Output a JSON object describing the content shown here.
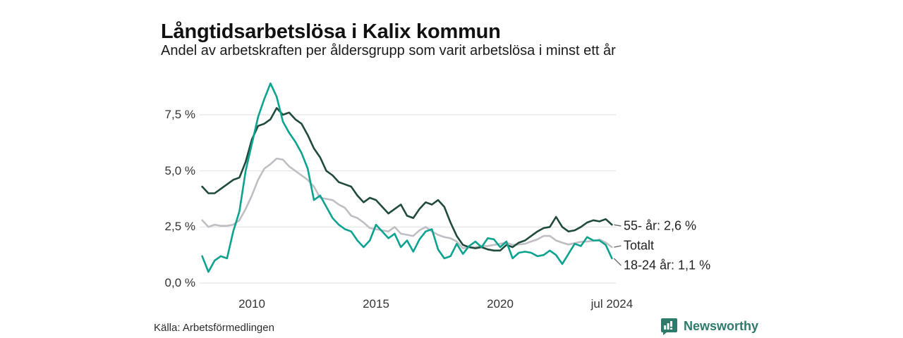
{
  "header": {
    "title": "Långtidsarbetslösa i Kalix kommun",
    "subtitle": "Andel av arbetskraften per åldersgrupp som varit arbetslösa i minst ett år"
  },
  "footer": {
    "source": "Källa: Arbetsförmedlingen",
    "brand_name": "Newsworthy",
    "brand_color": "#2e7a6b"
  },
  "chart_data": {
    "type": "line",
    "title": "Långtidsarbetslösa i Kalix kommun",
    "subtitle": "Andel av arbetskraften per åldersgrupp som varit arbetslösa i minst ett år",
    "unit": "%",
    "x_start_year": 2008.0,
    "x_step_years": 0.25,
    "x_end_label": "jul 2024",
    "x_tick_years": [
      2010,
      2015,
      2020,
      2024.5
    ],
    "x_tick_labels": [
      "2010",
      "2015",
      "2020",
      "jul 2024"
    ],
    "y_ticks": [
      7.5,
      5.0,
      2.5,
      0.0
    ],
    "y_tick_labels": [
      "7,5 %",
      "5,0 %",
      "2,5 %",
      "0,0 %"
    ],
    "ylim": [
      0,
      9.2
    ],
    "grid": "horizontal",
    "grid_color": "#e3e3e3",
    "legend_position": "right-of-line-ends",
    "series": [
      {
        "name": "Totalt",
        "end_label": "Totalt",
        "color": "#bfbec4",
        "values": [
          2.8,
          2.5,
          2.6,
          2.55,
          2.55,
          2.6,
          2.8,
          3.3,
          3.9,
          4.6,
          5.1,
          5.3,
          5.55,
          5.5,
          5.2,
          5.0,
          4.8,
          4.6,
          4.3,
          3.8,
          3.75,
          3.7,
          3.5,
          3.35,
          3.0,
          2.9,
          2.7,
          2.45,
          2.4,
          2.35,
          2.3,
          2.5,
          2.2,
          2.15,
          2.1,
          2.35,
          2.5,
          2.3,
          2.15,
          2.05,
          2.0,
          1.85,
          1.55,
          1.6,
          1.6,
          1.65,
          1.65,
          1.7,
          1.75,
          1.8,
          1.7,
          1.72,
          1.75,
          1.85,
          1.95,
          2.1,
          2.1,
          1.9,
          1.8,
          1.72,
          1.78,
          1.84,
          1.85,
          1.88,
          1.94,
          1.8,
          1.6
        ]
      },
      {
        "name": "55- år",
        "end_label": "55- år: 2,6 %",
        "end_value": 2.6,
        "color": "#1f4a3c",
        "values": [
          4.3,
          4.0,
          4.0,
          4.2,
          4.4,
          4.6,
          4.7,
          5.4,
          6.4,
          7.0,
          7.1,
          7.3,
          7.8,
          7.5,
          7.6,
          7.3,
          7.1,
          6.6,
          6.0,
          5.6,
          5.0,
          4.8,
          4.5,
          4.4,
          4.3,
          3.9,
          3.6,
          3.8,
          3.7,
          3.4,
          3.1,
          3.3,
          3.5,
          3.0,
          2.9,
          3.3,
          3.6,
          3.5,
          3.7,
          3.4,
          2.7,
          2.1,
          1.7,
          1.6,
          1.55,
          1.6,
          1.5,
          1.45,
          1.45,
          1.7,
          1.6,
          1.8,
          1.9,
          2.1,
          2.3,
          2.45,
          2.5,
          2.95,
          2.5,
          2.3,
          2.35,
          2.5,
          2.7,
          2.8,
          2.75,
          2.85,
          2.6
        ]
      },
      {
        "name": "18-24 år",
        "end_label": "18-24 år: 1,1 %",
        "end_value": 1.1,
        "color": "#0ba390",
        "values": [
          1.2,
          0.5,
          1.0,
          1.2,
          1.1,
          2.3,
          3.2,
          5.0,
          6.2,
          7.4,
          8.2,
          8.9,
          8.3,
          7.2,
          6.7,
          6.3,
          5.8,
          5.1,
          3.7,
          3.9,
          3.4,
          2.9,
          2.6,
          2.4,
          2.3,
          1.9,
          1.6,
          1.9,
          2.6,
          2.3,
          2.0,
          2.2,
          1.6,
          1.9,
          1.4,
          1.95,
          2.3,
          2.4,
          1.5,
          1.1,
          1.2,
          1.75,
          1.3,
          1.65,
          1.85,
          1.6,
          2.0,
          1.95,
          1.6,
          1.85,
          1.1,
          1.35,
          1.4,
          1.35,
          1.2,
          1.25,
          1.45,
          1.25,
          0.85,
          1.3,
          1.75,
          1.65,
          2.05,
          1.9,
          1.9,
          1.7,
          1.1
        ]
      }
    ],
    "legend_rows": [
      {
        "label": "55- år: 2,6 %",
        "series": "55- år"
      },
      {
        "label": "Totalt",
        "series": "Totalt"
      },
      {
        "label": "18-24 år: 1,1 %",
        "series": "18-24 år"
      }
    ]
  }
}
